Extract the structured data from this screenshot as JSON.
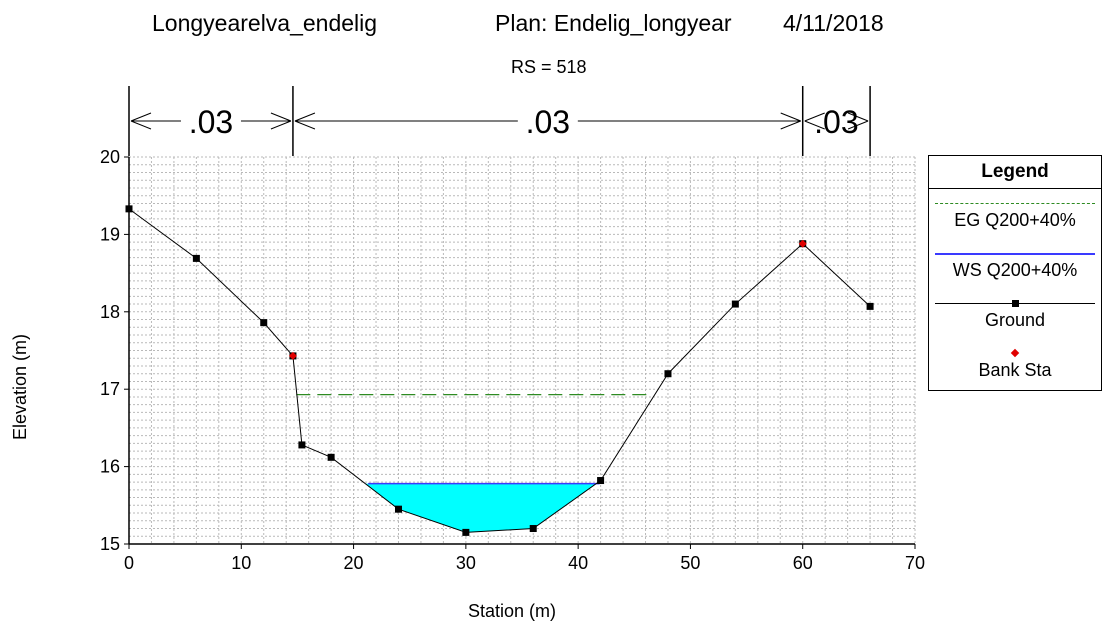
{
  "header": {
    "project": "Longyearelva_endelig",
    "plan": "Plan: Endelig_longyear",
    "date": "4/11/2018",
    "rs": "RS = 518"
  },
  "chart_data": {
    "type": "line",
    "xlabel": "Station (m)",
    "ylabel": "Elevation (m)",
    "xlim": [
      0,
      70
    ],
    "ylim": [
      15,
      20
    ],
    "xticks": [
      0,
      10,
      20,
      30,
      40,
      50,
      60,
      70
    ],
    "yticks": [
      15,
      16,
      17,
      18,
      19,
      20
    ],
    "grid": true,
    "legend_position": "right",
    "manning": [
      {
        "label": ".03",
        "from": 0,
        "to": 14.6
      },
      {
        "label": ".03",
        "from": 14.6,
        "to": 60
      },
      {
        "label": ".03",
        "from": 60,
        "to": 66
      }
    ],
    "series": [
      {
        "name": "EG Q200+40%",
        "style": "dashed",
        "color": "#2e8b22",
        "x": [
          14.9,
          46.2
        ],
        "y": [
          16.93,
          16.93
        ]
      },
      {
        "name": "WS Q200+40%",
        "style": "solid",
        "color": "#3a3aff",
        "x": [
          21.3,
          41.9
        ],
        "y": [
          15.78,
          15.78
        ]
      },
      {
        "name": "Ground",
        "style": "line-marker",
        "color": "#000000",
        "x": [
          0,
          6,
          12,
          14.6,
          15.4,
          18,
          24,
          30,
          36,
          42,
          48,
          54,
          60,
          66
        ],
        "y": [
          19.33,
          18.69,
          17.86,
          17.43,
          16.28,
          16.12,
          15.45,
          15.15,
          15.2,
          15.82,
          17.2,
          18.1,
          18.88,
          18.07
        ]
      },
      {
        "name": "Bank Sta",
        "style": "marker",
        "color": "#e00000",
        "x": [
          14.6,
          60
        ],
        "y": [
          17.43,
          18.88
        ]
      }
    ]
  },
  "legend": {
    "title": "Legend"
  }
}
